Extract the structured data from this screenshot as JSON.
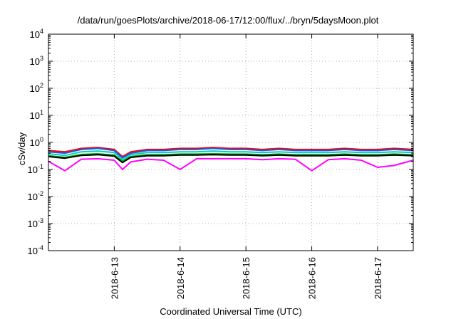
{
  "chart_data": {
    "type": "line",
    "title": "/data/run/goesPlots/archive/2018-06-17/12:00/flux/../bryn/5daysMoon.plot",
    "xlabel": "Coordinated Universal Time (UTC)",
    "ylabel": "cSv/day",
    "yscale": "log",
    "ylim": [
      0.0001,
      10000
    ],
    "y_ticks": [
      {
        "value": 0.0001,
        "base": "10",
        "exp": "-4"
      },
      {
        "value": 0.001,
        "base": "10",
        "exp": "-3"
      },
      {
        "value": 0.01,
        "base": "10",
        "exp": "-2"
      },
      {
        "value": 0.1,
        "base": "10",
        "exp": "-1"
      },
      {
        "value": 1,
        "base": "10",
        "exp": "0"
      },
      {
        "value": 10,
        "base": "10",
        "exp": "1"
      },
      {
        "value": 100,
        "base": "10",
        "exp": "2"
      },
      {
        "value": 1000,
        "base": "10",
        "exp": "3"
      },
      {
        "value": 10000,
        "base": "10",
        "exp": "4"
      }
    ],
    "xlim": [
      "2018-06-12",
      "2018-06-17 13:00"
    ],
    "x_ticks": [
      "2018-6-13",
      "2018-6-14",
      "2018-6-15",
      "2018-6-16",
      "2018-6-17"
    ],
    "grid": true,
    "x": [
      "2018-06-12 00:00",
      "2018-06-12 06:00",
      "2018-06-12 12:00",
      "2018-06-12 18:00",
      "2018-06-13 00:00",
      "2018-06-13 03:00",
      "2018-06-13 06:00",
      "2018-06-13 12:00",
      "2018-06-13 18:00",
      "2018-06-14 00:00",
      "2018-06-14 06:00",
      "2018-06-14 12:00",
      "2018-06-14 18:00",
      "2018-06-15 00:00",
      "2018-06-15 06:00",
      "2018-06-15 12:00",
      "2018-06-15 18:00",
      "2018-06-16 00:00",
      "2018-06-16 06:00",
      "2018-06-16 12:00",
      "2018-06-16 18:00",
      "2018-06-17 00:00",
      "2018-06-17 06:00",
      "2018-06-17 13:00"
    ],
    "series": [
      {
        "color": "#ff0000",
        "values": [
          0.5,
          0.45,
          0.6,
          0.65,
          0.55,
          0.3,
          0.45,
          0.55,
          0.55,
          0.6,
          0.6,
          0.65,
          0.6,
          0.6,
          0.55,
          0.6,
          0.55,
          0.55,
          0.55,
          0.6,
          0.55,
          0.55,
          0.6,
          0.55
        ]
      },
      {
        "color": "#2255dd",
        "values": [
          0.45,
          0.4,
          0.55,
          0.6,
          0.5,
          0.27,
          0.4,
          0.5,
          0.5,
          0.55,
          0.55,
          0.6,
          0.55,
          0.55,
          0.5,
          0.55,
          0.5,
          0.5,
          0.5,
          0.55,
          0.5,
          0.5,
          0.55,
          0.5
        ]
      },
      {
        "color": "#00cccc",
        "values": [
          0.38,
          0.33,
          0.45,
          0.48,
          0.42,
          0.23,
          0.35,
          0.42,
          0.42,
          0.45,
          0.45,
          0.48,
          0.45,
          0.45,
          0.42,
          0.45,
          0.42,
          0.42,
          0.42,
          0.45,
          0.42,
          0.42,
          0.45,
          0.42
        ]
      },
      {
        "color": "#00aa00",
        "values": [
          0.32,
          0.28,
          0.36,
          0.38,
          0.34,
          0.2,
          0.3,
          0.35,
          0.35,
          0.37,
          0.37,
          0.38,
          0.37,
          0.37,
          0.35,
          0.37,
          0.35,
          0.35,
          0.35,
          0.37,
          0.35,
          0.35,
          0.37,
          0.35
        ]
      },
      {
        "color": "#000000",
        "values": [
          0.3,
          0.26,
          0.33,
          0.35,
          0.31,
          0.18,
          0.28,
          0.32,
          0.32,
          0.34,
          0.34,
          0.35,
          0.34,
          0.34,
          0.32,
          0.34,
          0.32,
          0.32,
          0.32,
          0.34,
          0.32,
          0.32,
          0.34,
          0.32
        ]
      },
      {
        "color": "#ff00ff",
        "values": [
          0.2,
          0.09,
          0.24,
          0.25,
          0.22,
          0.1,
          0.19,
          0.24,
          0.22,
          0.1,
          0.25,
          0.25,
          0.25,
          0.25,
          0.23,
          0.25,
          0.24,
          0.09,
          0.23,
          0.25,
          0.22,
          0.12,
          0.14,
          0.22
        ]
      }
    ]
  }
}
